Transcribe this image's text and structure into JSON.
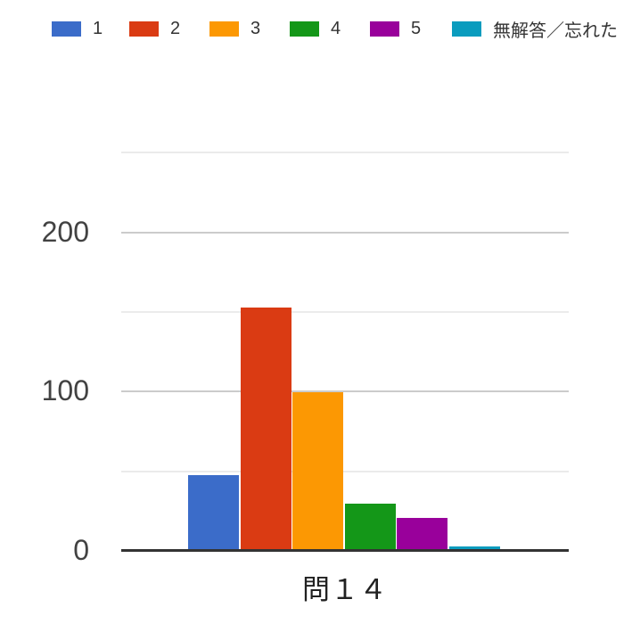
{
  "chart_data": {
    "type": "bar",
    "title": "",
    "categories": [
      "問１４"
    ],
    "series": [
      {
        "name": "1",
        "color": "#3B6CC9",
        "values": [
          47
        ]
      },
      {
        "name": "2",
        "color": "#DA3B13",
        "values": [
          152
        ]
      },
      {
        "name": "3",
        "color": "#FC9803",
        "values": [
          99
        ]
      },
      {
        "name": "4",
        "color": "#149718",
        "values": [
          29
        ]
      },
      {
        "name": "5",
        "color": "#99009B",
        "values": [
          20
        ]
      },
      {
        "name": "無解答／忘れた",
        "color": "#0A9CBE",
        "values": [
          2
        ]
      }
    ],
    "xlabel": "問１４",
    "ylabel": "",
    "ylim": [
      0,
      250
    ],
    "yticks": [
      0,
      100,
      200
    ],
    "minor_gridlines": [
      50,
      150,
      250
    ],
    "legend_position": "top",
    "grid": true,
    "colors": {
      "axis_line": "#333333",
      "major_gridline": "#cccccc",
      "minor_gridline": "#ebebeb",
      "tick_label_text": "#424242",
      "legend_text": "#333333",
      "x_label_text": "#212121",
      "background": "#ffffff"
    }
  }
}
